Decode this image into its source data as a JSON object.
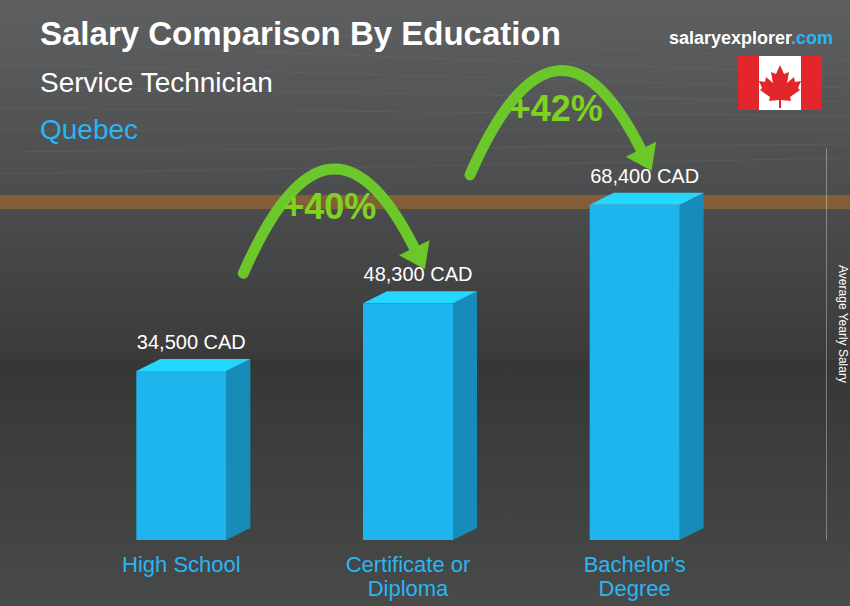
{
  "chart_data": {
    "type": "bar",
    "title": "Salary Comparison By Education",
    "subtitle": "Service Technician",
    "region": "Quebec",
    "source": "salaryexplorer.com",
    "y_label": "Average Yearly Salary",
    "categories": [
      "High School",
      "Certificate or Diploma",
      "Bachelor's Degree"
    ],
    "values": [
      34500,
      48300,
      68400
    ],
    "value_labels": [
      "34,500 CAD",
      "48,300 CAD",
      "68,400 CAD"
    ],
    "data_labels": true,
    "color": "#1eb4ee",
    "ylim": [
      0,
      80000
    ],
    "tick_labels": false,
    "annotations": [
      "+40%",
      "+42%"
    ]
  }
}
